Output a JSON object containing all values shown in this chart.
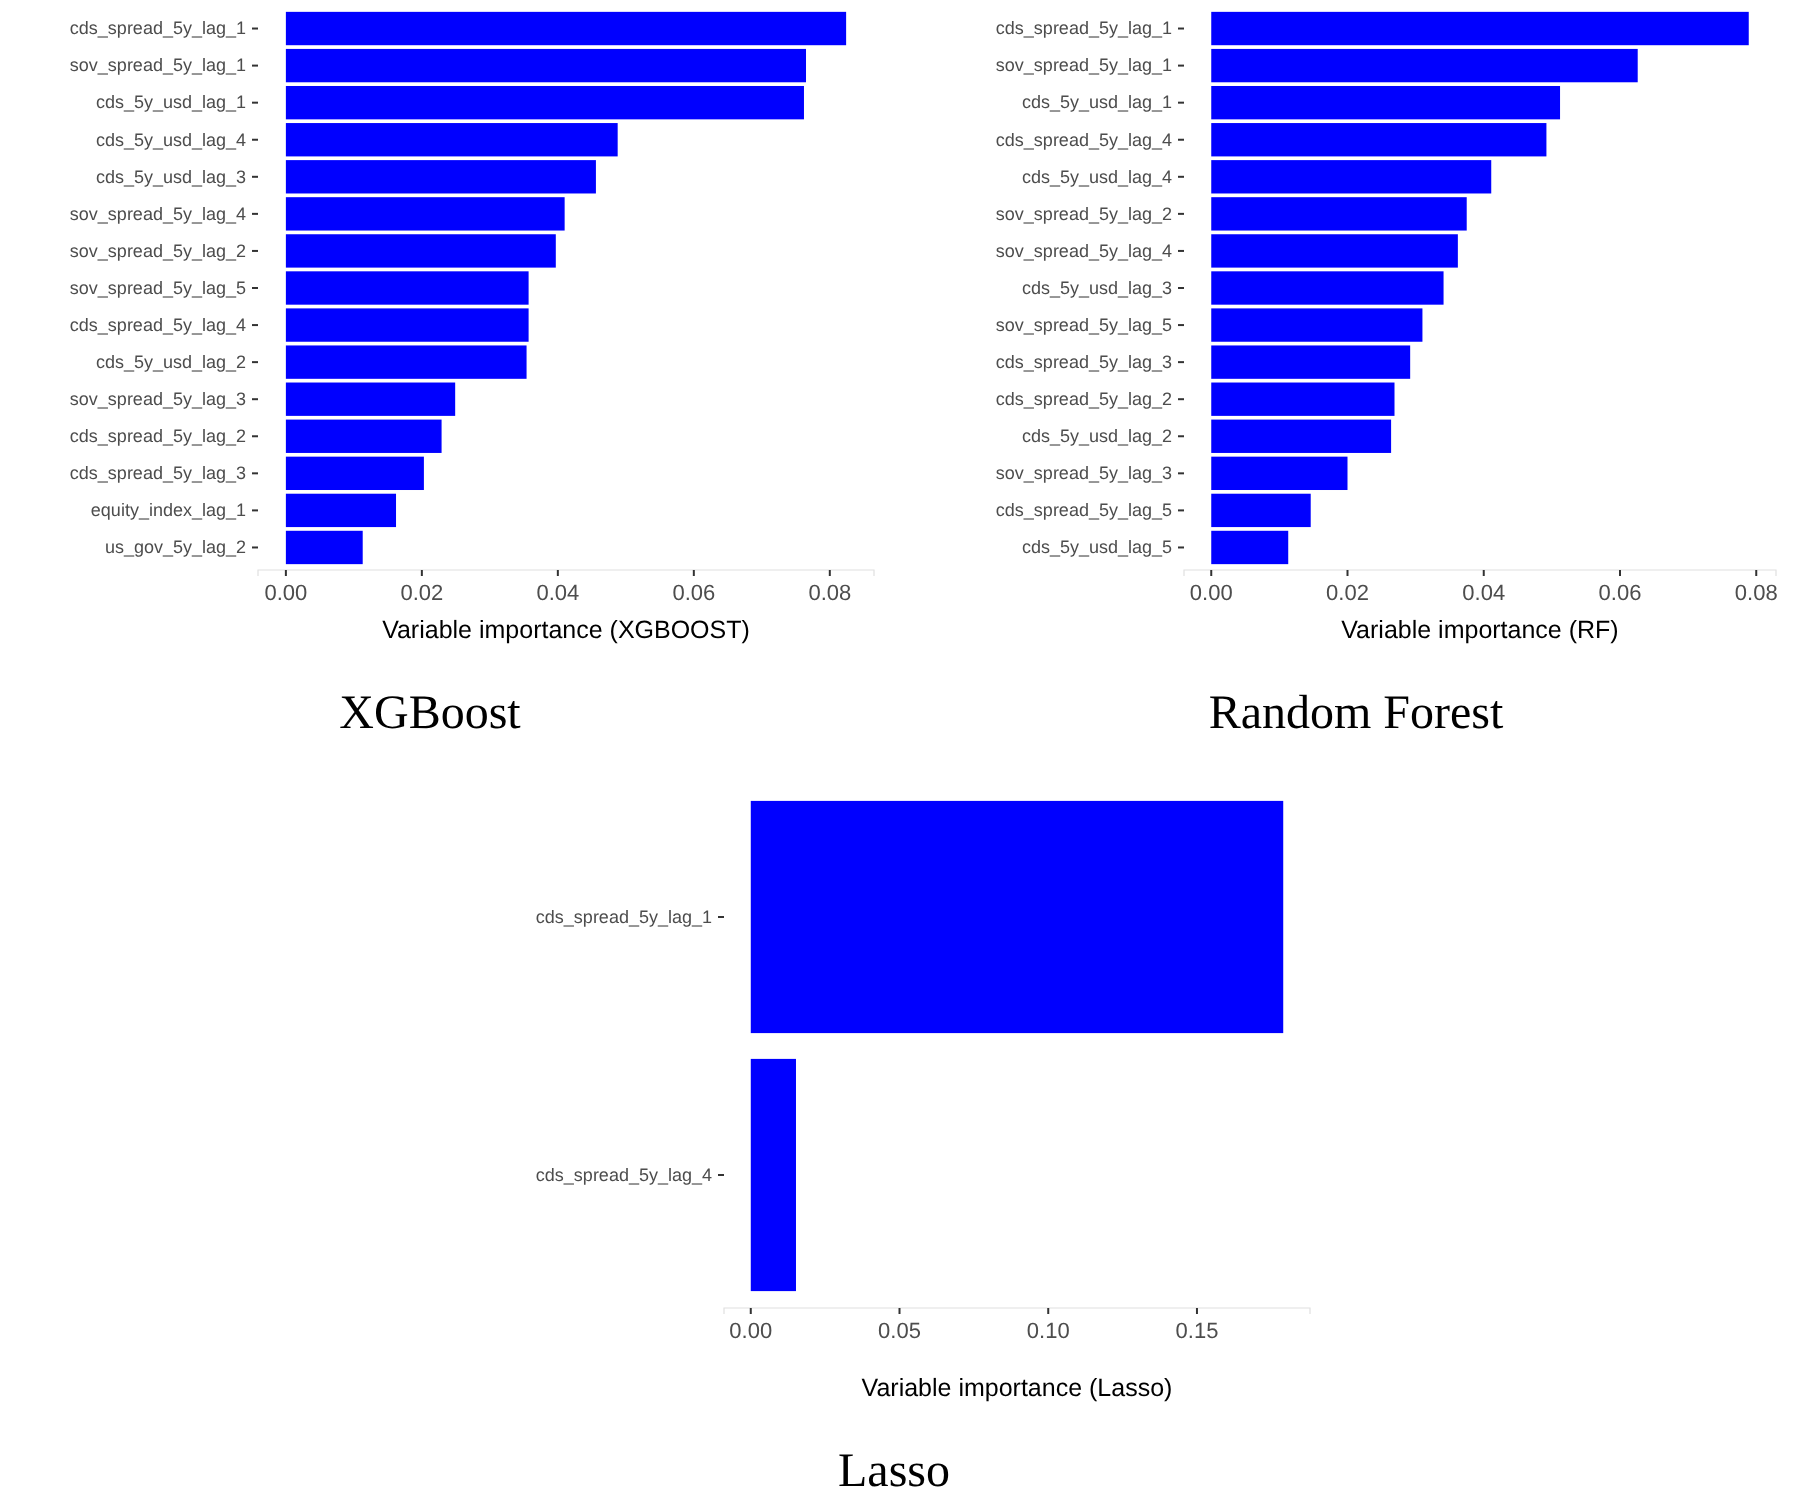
{
  "chart_data": [
    {
      "type": "bar",
      "orientation": "horizontal",
      "title": "XGBoost",
      "xlabel": "Variable importance (XGBOOST)",
      "categories": [
        "cds_spread_5y_lag_1",
        "sov_spread_5y_lag_1",
        "cds_5y_usd_lag_1",
        "cds_5y_usd_lag_4",
        "cds_5y_usd_lag_3",
        "sov_spread_5y_lag_4",
        "sov_spread_5y_lag_2",
        "sov_spread_5y_lag_5",
        "cds_spread_5y_lag_4",
        "cds_5y_usd_lag_2",
        "sov_spread_5y_lag_3",
        "cds_spread_5y_lag_2",
        "cds_spread_5y_lag_3",
        "equity_index_lag_1",
        "us_gov_5y_lag_2"
      ],
      "values": [
        0.0824,
        0.0765,
        0.0762,
        0.0488,
        0.0456,
        0.041,
        0.0397,
        0.0357,
        0.0357,
        0.0354,
        0.0249,
        0.0229,
        0.0203,
        0.0162,
        0.0113
      ],
      "color": "#0000ff",
      "xlim": [
        -0.0041,
        0.0865
      ],
      "xticks": [
        {
          "value": 0,
          "label": "0.00"
        },
        {
          "value": 0.02,
          "label": "0.02"
        },
        {
          "value": 0.04,
          "label": "0.04"
        },
        {
          "value": 0.06,
          "label": "0.06"
        },
        {
          "value": 0.08,
          "label": "0.08"
        }
      ],
      "grid": false
    },
    {
      "type": "bar",
      "orientation": "horizontal",
      "title": "Random Forest",
      "xlabel": "Variable importance (RF)",
      "categories": [
        "cds_spread_5y_lag_1",
        "sov_spread_5y_lag_1",
        "cds_5y_usd_lag_1",
        "cds_spread_5y_lag_4",
        "cds_5y_usd_lag_4",
        "sov_spread_5y_lag_2",
        "sov_spread_5y_lag_4",
        "cds_5y_usd_lag_3",
        "sov_spread_5y_lag_5",
        "cds_spread_5y_lag_3",
        "cds_spread_5y_lag_2",
        "cds_5y_usd_lag_2",
        "sov_spread_5y_lag_3",
        "cds_spread_5y_lag_5",
        "cds_5y_usd_lag_5"
      ],
      "values": [
        0.0789,
        0.0626,
        0.0512,
        0.0492,
        0.0411,
        0.0375,
        0.0362,
        0.0341,
        0.031,
        0.0292,
        0.0269,
        0.0264,
        0.02,
        0.0146,
        0.0113
      ],
      "color": "#0000ff",
      "xlim": [
        -0.004,
        0.0829
      ],
      "xticks": [
        {
          "value": 0,
          "label": "0.00"
        },
        {
          "value": 0.02,
          "label": "0.02"
        },
        {
          "value": 0.04,
          "label": "0.04"
        },
        {
          "value": 0.06,
          "label": "0.06"
        },
        {
          "value": 0.08,
          "label": "0.08"
        }
      ],
      "grid": false
    },
    {
      "type": "bar",
      "orientation": "horizontal",
      "title": "Lasso",
      "xlabel": "Variable importance (Lasso)",
      "categories": [
        "cds_spread_5y_lag_1",
        "cds_spread_5y_lag_4"
      ],
      "values": [
        0.179,
        0.0152
      ],
      "color": "#0000ff",
      "xlim": [
        -0.009,
        0.188
      ],
      "xticks": [
        {
          "value": 0,
          "label": "0.00"
        },
        {
          "value": 0.05,
          "label": "0.05"
        },
        {
          "value": 0.1,
          "label": "0.10"
        },
        {
          "value": 0.15,
          "label": "0.15"
        }
      ],
      "grid": false
    }
  ]
}
